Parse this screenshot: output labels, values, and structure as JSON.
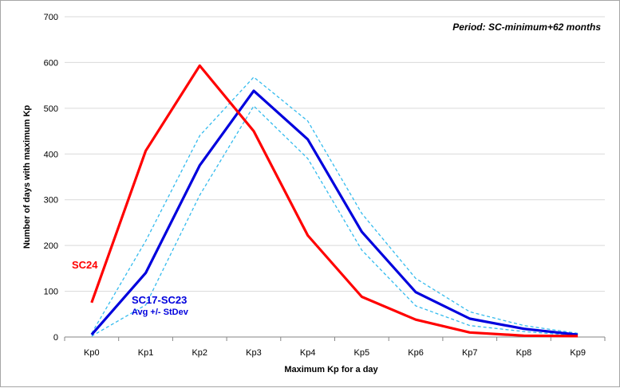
{
  "chart_data": {
    "type": "line",
    "title": "Period: SC-minimum+62 months",
    "xlabel": "Maximum Kp for a day",
    "ylabel": "Number of days with maximum Kp",
    "categories": [
      "Kp0",
      "Kp1",
      "Kp2",
      "Kp3",
      "Kp4",
      "Kp5",
      "Kp6",
      "Kp7",
      "Kp8",
      "Kp9"
    ],
    "ylim": [
      0,
      700
    ],
    "yticks": [
      "0",
      "100",
      "200",
      "300",
      "400",
      "500",
      "600",
      "700"
    ],
    "grid": "horizontal",
    "series": [
      {
        "name": "SC24",
        "color": "#ff0000",
        "style": "solid",
        "values": [
          75,
          407,
          593,
          450,
          222,
          88,
          38,
          10,
          3,
          2
        ]
      },
      {
        "name": "SC17-SC23",
        "color": "#0000dd",
        "style": "solid",
        "values": [
          5,
          140,
          375,
          538,
          432,
          230,
          98,
          40,
          18,
          5
        ]
      },
      {
        "name": "",
        "color": "#33bbee",
        "style": "dashed",
        "values": [
          8,
          210,
          440,
          568,
          472,
          270,
          128,
          55,
          25,
          8
        ]
      },
      {
        "name": "",
        "color": "#33bbee",
        "style": "dashed",
        "values": [
          2,
          70,
          310,
          505,
          390,
          190,
          68,
          25,
          12,
          3
        ]
      }
    ],
    "annotations": {
      "sc24_label": "SC24",
      "sc17_label": "SC17-SC23",
      "sc17_sublabel": "Avg +/- StDev"
    }
  }
}
